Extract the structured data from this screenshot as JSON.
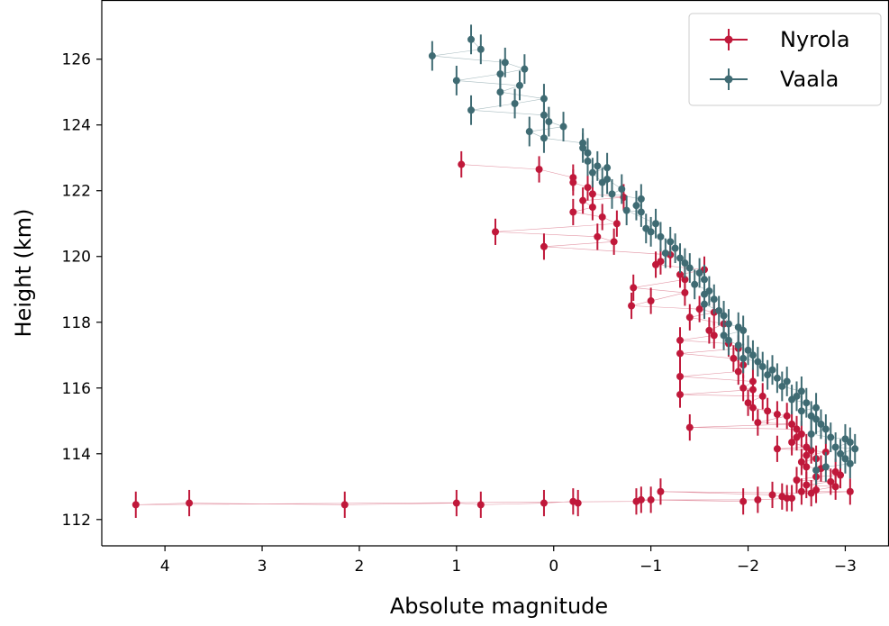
{
  "chart_data": {
    "type": "scatter",
    "xlabel": "Absolute magnitude",
    "ylabel": "Height (km)",
    "xlim": [
      4.65,
      -3.45
    ],
    "ylim": [
      111.2,
      127.8
    ],
    "x_inverted": true,
    "x_ticks": [
      {
        "value": 4,
        "label": "4"
      },
      {
        "value": 3,
        "label": "3"
      },
      {
        "value": 2,
        "label": "2"
      },
      {
        "value": 1,
        "label": "1"
      },
      {
        "value": 0,
        "label": "0"
      },
      {
        "value": -1,
        "label": "−1"
      },
      {
        "value": -2,
        "label": "−2"
      },
      {
        "value": -3,
        "label": "−3"
      }
    ],
    "y_ticks": [
      {
        "value": 112,
        "label": "112"
      },
      {
        "value": 114,
        "label": "114"
      },
      {
        "value": 116,
        "label": "116"
      },
      {
        "value": 118,
        "label": "118"
      },
      {
        "value": 120,
        "label": "120"
      },
      {
        "value": 122,
        "label": "122"
      },
      {
        "value": 124,
        "label": "124"
      },
      {
        "value": 126,
        "label": "126"
      }
    ],
    "legend_position": "top-right",
    "series": [
      {
        "name": "Nyrola",
        "color": "#c0183a",
        "marker": "circle",
        "errorbar_km": 0.4,
        "points": [
          [
            0.95,
            122.8
          ],
          [
            0.15,
            122.65
          ],
          [
            -0.2,
            122.4
          ],
          [
            -0.2,
            122.25
          ],
          [
            -0.35,
            122.1
          ],
          [
            -0.4,
            121.9
          ],
          [
            -0.72,
            121.8
          ],
          [
            -0.3,
            121.7
          ],
          [
            -0.4,
            121.5
          ],
          [
            -0.2,
            121.35
          ],
          [
            -0.5,
            121.2
          ],
          [
            -0.65,
            121.0
          ],
          [
            0.6,
            120.75
          ],
          [
            -0.45,
            120.6
          ],
          [
            -0.62,
            120.45
          ],
          [
            0.1,
            120.3
          ],
          [
            -1.2,
            120.05
          ],
          [
            -1.1,
            119.85
          ],
          [
            -1.05,
            119.75
          ],
          [
            -1.55,
            119.6
          ],
          [
            -1.3,
            119.45
          ],
          [
            -1.35,
            119.3
          ],
          [
            -0.82,
            119.05
          ],
          [
            -1.35,
            118.9
          ],
          [
            -1.0,
            118.65
          ],
          [
            -0.8,
            118.5
          ],
          [
            -1.5,
            118.4
          ],
          [
            -1.65,
            118.3
          ],
          [
            -1.4,
            118.15
          ],
          [
            -1.75,
            117.95
          ],
          [
            -1.6,
            117.75
          ],
          [
            -1.65,
            117.6
          ],
          [
            -1.3,
            117.45
          ],
          [
            -1.8,
            117.35
          ],
          [
            -1.9,
            117.2
          ],
          [
            -1.3,
            117.05
          ],
          [
            -1.85,
            116.9
          ],
          [
            -1.95,
            116.7
          ],
          [
            -1.9,
            116.5
          ],
          [
            -1.3,
            116.35
          ],
          [
            -2.05,
            116.2
          ],
          [
            -1.95,
            116.0
          ],
          [
            -2.05,
            115.95
          ],
          [
            -1.3,
            115.8
          ],
          [
            -2.15,
            115.75
          ],
          [
            -2.0,
            115.55
          ],
          [
            -2.05,
            115.4
          ],
          [
            -2.2,
            115.3
          ],
          [
            -2.3,
            115.2
          ],
          [
            -2.4,
            115.15
          ],
          [
            -2.1,
            114.95
          ],
          [
            -2.45,
            114.9
          ],
          [
            -1.4,
            114.8
          ],
          [
            -2.5,
            114.75
          ],
          [
            -2.55,
            114.6
          ],
          [
            -2.5,
            114.5
          ],
          [
            -2.45,
            114.35
          ],
          [
            -2.6,
            114.2
          ],
          [
            -2.3,
            114.15
          ],
          [
            -2.65,
            114.1
          ],
          [
            -2.8,
            114.05
          ],
          [
            -2.6,
            113.95
          ],
          [
            -2.7,
            113.85
          ],
          [
            -2.55,
            113.75
          ],
          [
            -2.6,
            113.6
          ],
          [
            -2.75,
            113.55
          ],
          [
            -2.9,
            113.45
          ],
          [
            -2.95,
            113.35
          ],
          [
            -2.7,
            113.3
          ],
          [
            -2.5,
            113.2
          ],
          [
            -2.85,
            113.15
          ],
          [
            -2.6,
            113.05
          ],
          [
            -2.9,
            113.0
          ],
          [
            -2.7,
            112.9
          ],
          [
            -2.55,
            112.85
          ],
          [
            -3.05,
            112.85
          ],
          [
            -2.65,
            112.8
          ],
          [
            -1.1,
            112.85
          ],
          [
            -2.25,
            112.75
          ],
          [
            -2.35,
            112.7
          ],
          [
            -2.4,
            112.65
          ],
          [
            -2.45,
            112.65
          ],
          [
            -2.1,
            112.6
          ],
          [
            -0.9,
            112.6
          ],
          [
            -1.95,
            112.55
          ],
          [
            -1.0,
            112.6
          ],
          [
            -0.85,
            112.55
          ],
          [
            4.3,
            112.45
          ],
          [
            3.75,
            112.5
          ],
          [
            2.15,
            112.45
          ],
          [
            1.0,
            112.5
          ],
          [
            0.75,
            112.45
          ],
          [
            0.1,
            112.5
          ],
          [
            -0.2,
            112.55
          ],
          [
            -0.25,
            112.5
          ]
        ]
      },
      {
        "name": "Vaala",
        "color": "#3f6b73",
        "marker": "circle",
        "errorbar_km": 0.45,
        "points": [
          [
            0.85,
            126.6
          ],
          [
            0.75,
            126.3
          ],
          [
            1.25,
            126.1
          ],
          [
            0.5,
            125.9
          ],
          [
            0.3,
            125.7
          ],
          [
            0.55,
            125.55
          ],
          [
            1.0,
            125.35
          ],
          [
            0.35,
            125.2
          ],
          [
            0.55,
            125.0
          ],
          [
            0.1,
            124.8
          ],
          [
            0.4,
            124.65
          ],
          [
            0.85,
            124.45
          ],
          [
            0.1,
            124.3
          ],
          [
            0.05,
            124.1
          ],
          [
            -0.1,
            123.95
          ],
          [
            0.25,
            123.8
          ],
          [
            0.1,
            123.6
          ],
          [
            -0.3,
            123.45
          ],
          [
            -0.3,
            123.3
          ],
          [
            -0.35,
            123.15
          ],
          [
            -0.35,
            122.9
          ],
          [
            -0.45,
            122.75
          ],
          [
            -0.55,
            122.7
          ],
          [
            -0.4,
            122.55
          ],
          [
            -0.5,
            122.25
          ],
          [
            -0.55,
            122.35
          ],
          [
            -0.7,
            122.05
          ],
          [
            -0.6,
            121.9
          ],
          [
            -0.9,
            121.75
          ],
          [
            -0.85,
            121.55
          ],
          [
            -0.9,
            121.35
          ],
          [
            -0.75,
            121.4
          ],
          [
            -1.05,
            121.0
          ],
          [
            -0.95,
            120.85
          ],
          [
            -1.0,
            120.75
          ],
          [
            -1.1,
            120.6
          ],
          [
            -1.2,
            120.45
          ],
          [
            -1.25,
            120.25
          ],
          [
            -1.15,
            120.1
          ],
          [
            -1.3,
            119.95
          ],
          [
            -1.35,
            119.8
          ],
          [
            -1.4,
            119.65
          ],
          [
            -1.5,
            119.5
          ],
          [
            -1.55,
            119.3
          ],
          [
            -1.45,
            119.15
          ],
          [
            -1.6,
            118.95
          ],
          [
            -1.55,
            118.85
          ],
          [
            -1.65,
            118.7
          ],
          [
            -1.55,
            118.55
          ],
          [
            -1.7,
            118.35
          ],
          [
            -1.75,
            118.2
          ],
          [
            -1.8,
            117.95
          ],
          [
            -1.9,
            117.85
          ],
          [
            -1.95,
            117.75
          ],
          [
            -1.75,
            117.6
          ],
          [
            -1.8,
            117.45
          ],
          [
            -1.9,
            117.3
          ],
          [
            -2.0,
            117.15
          ],
          [
            -2.05,
            117.0
          ],
          [
            -1.95,
            116.9
          ],
          [
            -2.1,
            116.8
          ],
          [
            -2.15,
            116.65
          ],
          [
            -2.25,
            116.55
          ],
          [
            -2.2,
            116.4
          ],
          [
            -2.3,
            116.3
          ],
          [
            -2.4,
            116.2
          ],
          [
            -2.35,
            116.05
          ],
          [
            -2.55,
            115.9
          ],
          [
            -2.5,
            115.75
          ],
          [
            -2.45,
            115.65
          ],
          [
            -2.6,
            115.55
          ],
          [
            -2.7,
            115.4
          ],
          [
            -2.55,
            115.3
          ],
          [
            -2.65,
            115.15
          ],
          [
            -2.7,
            115.05
          ],
          [
            -2.75,
            114.9
          ],
          [
            -2.8,
            114.75
          ],
          [
            -2.65,
            114.6
          ],
          [
            -2.85,
            114.5
          ],
          [
            -3.0,
            114.45
          ],
          [
            -3.05,
            114.35
          ],
          [
            -2.9,
            114.2
          ],
          [
            -3.1,
            114.15
          ],
          [
            -2.95,
            114.0
          ],
          [
            -3.0,
            113.85
          ],
          [
            -3.05,
            113.7
          ],
          [
            -2.8,
            113.6
          ],
          [
            -2.7,
            113.5
          ]
        ]
      }
    ]
  }
}
